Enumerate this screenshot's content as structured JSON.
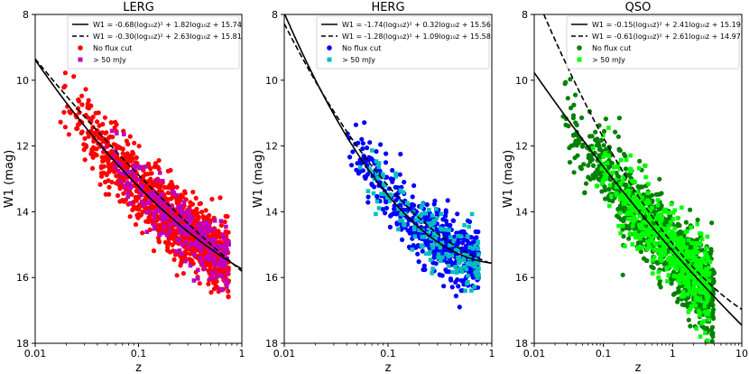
{
  "chart_data": [
    {
      "type": "scatter",
      "title": "LERG",
      "xlabel": "z",
      "ylabel": "W1 (mag)",
      "xscale": "log",
      "xlim": [
        0.01,
        1
      ],
      "ylim": [
        18,
        8
      ],
      "xticks": [
        "0.01",
        "0.1",
        "1"
      ],
      "yticks": [
        "8",
        "10",
        "12",
        "14",
        "16",
        "18"
      ],
      "legend": [
        {
          "label": "W1 = -0.68(log₁₀z)² + 1.82log₁₀z + 15.74",
          "kind": "solid-line"
        },
        {
          "label": "W1 = -0.30(log₁₀z)² + 2.63log₁₀z + 15.81",
          "kind": "dashed-line"
        },
        {
          "label": "No flux cut",
          "kind": "circle",
          "color": "#ff0000"
        },
        {
          "label": "> 50 mJy",
          "kind": "square",
          "color": "#bf00bf"
        }
      ],
      "fits": [
        {
          "style": "solid",
          "a": -0.68,
          "b": 1.82,
          "c": 15.74
        },
        {
          "style": "dashed",
          "a": -0.3,
          "b": 2.63,
          "c": 15.81
        }
      ],
      "series": [
        {
          "name": "No flux cut",
          "marker": "circle",
          "color": "#ff0000",
          "z_range": [
            0.017,
            0.75
          ],
          "count": 1100,
          "scatter": 0.55,
          "fit": 0
        },
        {
          "name": "> 50 mJy",
          "marker": "square",
          "color": "#bf00bf",
          "z_range": [
            0.04,
            0.75
          ],
          "count": 260,
          "scatter": 0.45,
          "fit": 0
        }
      ]
    },
    {
      "type": "scatter",
      "title": "HERG",
      "xlabel": "z",
      "ylabel": "W1 (mag)",
      "xscale": "log",
      "xlim": [
        0.01,
        1
      ],
      "ylim": [
        18,
        8
      ],
      "xticks": [
        "0.01",
        "0.1",
        "1"
      ],
      "yticks": [
        "8",
        "10",
        "12",
        "14",
        "16",
        "18"
      ],
      "legend": [
        {
          "label": "W1 = -1.74(log₁₀z)² + 0.32log₁₀z + 15.56",
          "kind": "solid-line"
        },
        {
          "label": "W1 = -1.28(log₁₀z)² + 1.09log₁₀z + 15.58",
          "kind": "dashed-line"
        },
        {
          "label": "No flux cut",
          "kind": "circle",
          "color": "#0000ff"
        },
        {
          "label": "> 50 mJy",
          "kind": "square",
          "color": "#00bfbf"
        }
      ],
      "fits": [
        {
          "style": "solid",
          "a": -1.74,
          "b": 0.32,
          "c": 15.56
        },
        {
          "style": "dashed",
          "a": -1.28,
          "b": 1.09,
          "c": 15.58
        }
      ],
      "series": [
        {
          "name": "No flux cut",
          "marker": "circle",
          "color": "#0000ff",
          "z_range": [
            0.04,
            0.75
          ],
          "count": 520,
          "scatter": 0.55,
          "fit": 0
        },
        {
          "name": "> 50 mJy",
          "marker": "square",
          "color": "#00bfbf",
          "z_range": [
            0.045,
            0.75
          ],
          "count": 170,
          "scatter": 0.45,
          "fit": 0
        }
      ]
    },
    {
      "type": "scatter",
      "title": "QSO",
      "xlabel": "z",
      "ylabel": "W1 (mag)",
      "xscale": "log",
      "xlim": [
        0.01,
        10
      ],
      "ylim": [
        18,
        8
      ],
      "xticks": [
        "0.01",
        "0.1",
        "1",
        "10"
      ],
      "yticks": [
        "8",
        "10",
        "12",
        "14",
        "16",
        "18"
      ],
      "legend": [
        {
          "label": "W1 = -0.15(log₁₀z)² + 2.41log₁₀z + 15.19",
          "kind": "solid-line"
        },
        {
          "label": "W1 = -0.61(log₁₀z)² + 2.61log₁₀z + 14.97",
          "kind": "dashed-line"
        },
        {
          "label": "No flux cut",
          "kind": "circle",
          "color": "#008000"
        },
        {
          "label": "> 50 mJy",
          "kind": "square",
          "color": "#00ff00"
        }
      ],
      "fits": [
        {
          "style": "solid",
          "a": -0.15,
          "b": 2.41,
          "c": 15.19
        },
        {
          "style": "dashed",
          "a": -0.61,
          "b": 2.61,
          "c": 14.97
        }
      ],
      "series": [
        {
          "name": "No flux cut",
          "marker": "circle",
          "color": "#008000",
          "z_range": [
            0.025,
            4.0
          ],
          "count": 950,
          "scatter": 0.65,
          "fit": 0
        },
        {
          "name": "> 50 mJy",
          "marker": "square",
          "color": "#00ff00",
          "z_range": [
            0.06,
            3.5
          ],
          "count": 520,
          "scatter": 0.6,
          "fit": 0
        }
      ]
    }
  ]
}
